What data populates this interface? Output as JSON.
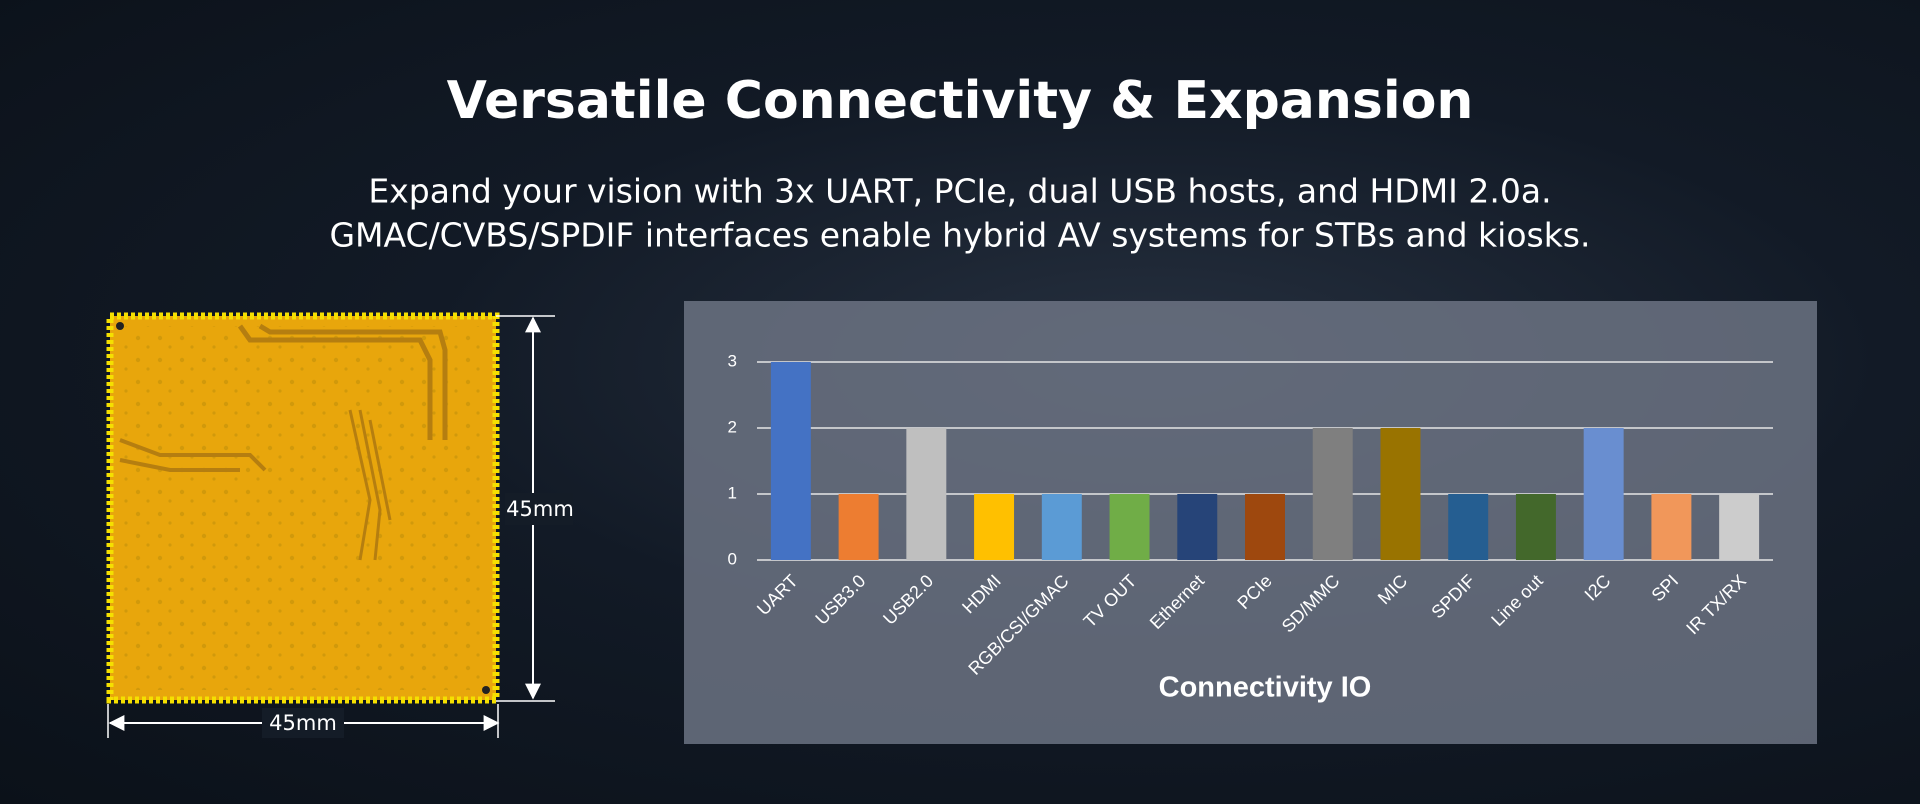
{
  "header": {
    "title": "Versatile Connectivity & Expansion",
    "subtitle": [
      "Expand your vision with 3x UART, PCIe, dual USB hosts, and HDMI 2.0a.",
      "GMAC/CVBS/SPDIF interfaces enable hybrid AV systems for STBs and kiosks."
    ]
  },
  "board": {
    "height_label": "45mm",
    "width_label": "45mm"
  },
  "chart_data": {
    "type": "bar",
    "x_label": "Connectivity IO",
    "categories": [
      "UART",
      "USB3.0",
      "USB2.0",
      "HDMI",
      "RGB/CSI/GMAC",
      "TV OUT",
      "Ethernet",
      "PCIe",
      "SD/MMC",
      "MIC",
      "SPDIF",
      "Line out",
      "I2C",
      "SPI",
      "IR TX/RX"
    ],
    "values": [
      3,
      1,
      2,
      1,
      1,
      1,
      1,
      1,
      2,
      2,
      1,
      1,
      2,
      1,
      1
    ],
    "colors": [
      "#4472c4",
      "#ed7d31",
      "#bfbfbf",
      "#ffc000",
      "#5b9bd5",
      "#70ad47",
      "#264478",
      "#9e480e",
      "#7f7f7f",
      "#997300",
      "#255e91",
      "#43682b",
      "#698ed0",
      "#f1975a",
      "#cccccc"
    ],
    "ylim": [
      0,
      3
    ],
    "yticks": [
      0,
      1,
      2,
      3
    ],
    "grid": true
  }
}
